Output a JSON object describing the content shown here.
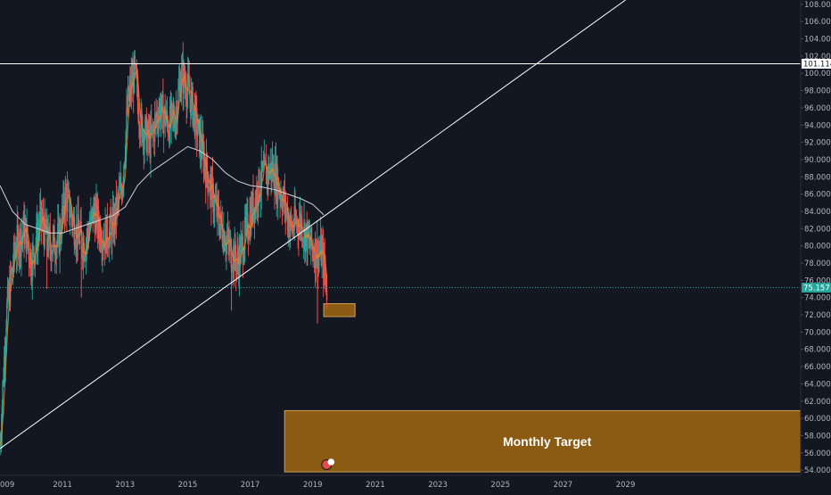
{
  "chart_data": {
    "type": "candlestick",
    "x_ticks": [
      "009",
      "2011",
      "2013",
      "2015",
      "2017",
      "2019",
      "2021",
      "2023",
      "2025",
      "2027",
      "2029"
    ],
    "y_ticks": [
      "54.000",
      "56.000",
      "58.000",
      "60.000",
      "62.000",
      "64.000",
      "66.000",
      "68.000",
      "70.000",
      "72.000",
      "74.000",
      "76.000",
      "78.000",
      "80.000",
      "82.000",
      "84.000",
      "86.000",
      "88.000",
      "90.000",
      "92.000",
      "94.000",
      "96.000",
      "98.000",
      "100.000",
      "102.000",
      "104.000",
      "106.000",
      "108.000"
    ],
    "ylim": [
      53.5,
      108.5
    ],
    "xlim": [
      2009.0,
      2034.6
    ],
    "horizontal_line": {
      "value": 101.114,
      "label": "101.114",
      "color": "#ffffff"
    },
    "last_price": {
      "value": 75.157,
      "label": "75.157",
      "color": "#26a69a"
    },
    "trendline": {
      "x": [
        2009.0,
        2029.0
      ],
      "y": [
        56.5,
        108.5
      ],
      "color": "#ffffff"
    },
    "small_zone": {
      "x": [
        2019.35,
        2020.35
      ],
      "y": [
        71.8,
        73.3
      ],
      "color": "#8b5a13",
      "border": "#c9a05a"
    },
    "target_zone": {
      "x": [
        2018.1,
        2034.6
      ],
      "y": [
        53.8,
        60.9
      ],
      "label": "Monthly Target",
      "color": "#8b5a13",
      "border": "#c9a05a"
    },
    "price_series": {
      "x": [
        2009.0,
        2009.2,
        2009.5,
        2009.8,
        2010.0,
        2010.3,
        2010.6,
        2010.9,
        2011.1,
        2011.4,
        2011.7,
        2012.0,
        2012.3,
        2012.6,
        2012.9,
        2013.1,
        2013.3,
        2013.5,
        2013.8,
        2014.1,
        2014.4,
        2014.6,
        2014.8,
        2015.1,
        2015.4,
        2015.7,
        2016.0,
        2016.3,
        2016.6,
        2016.9,
        2017.2,
        2017.4,
        2017.7,
        2018.0,
        2018.3,
        2018.6,
        2018.9,
        2019.1,
        2019.3,
        2019.45
      ],
      "y": [
        57.0,
        72.0,
        80.0,
        82.0,
        78.0,
        83.0,
        80.0,
        81.0,
        86.0,
        82.0,
        80.0,
        84.0,
        81.0,
        82.0,
        87.0,
        97.0,
        100.0,
        94.0,
        92.0,
        96.0,
        94.0,
        95.0,
        100.0,
        97.0,
        92.0,
        87.0,
        83.0,
        80.0,
        78.0,
        82.0,
        86.0,
        88.0,
        89.0,
        86.0,
        82.0,
        83.0,
        80.0,
        79.5,
        79.0,
        75.157
      ]
    },
    "moving_average": {
      "x": [
        2009.0,
        2009.4,
        2009.8,
        2010.2,
        2010.6,
        2011.0,
        2011.4,
        2011.8,
        2012.2,
        2012.6,
        2013.0,
        2013.4,
        2013.8,
        2014.2,
        2014.6,
        2015.0,
        2015.4,
        2015.8,
        2016.2,
        2016.6,
        2017.0,
        2017.4,
        2017.8,
        2018.2,
        2018.6,
        2019.0,
        2019.35
      ],
      "y": [
        87.0,
        84.0,
        82.5,
        82.0,
        81.5,
        81.5,
        82.0,
        82.5,
        83.0,
        83.5,
        84.5,
        87.0,
        88.5,
        89.5,
        90.5,
        91.5,
        91.0,
        90.0,
        88.5,
        87.5,
        87.0,
        86.8,
        86.5,
        86.0,
        85.5,
        84.8,
        83.6
      ]
    },
    "event_badge": {
      "x": 2019.5,
      "count": "2"
    }
  }
}
